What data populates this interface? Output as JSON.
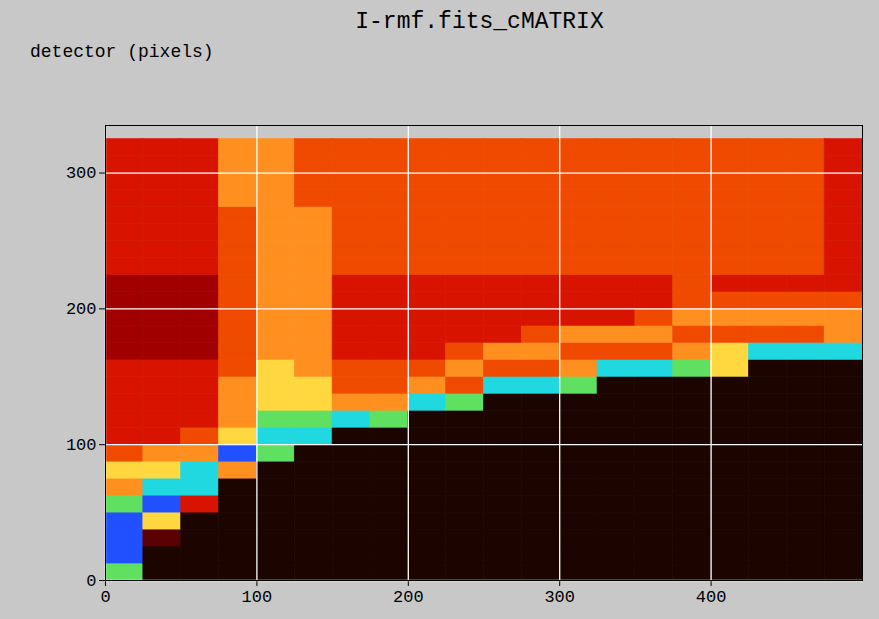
{
  "chart_data": {
    "type": "heatmap",
    "title": "I-rmf.fits_cMATRIX",
    "ylabel": "detector (pixels)",
    "xlim": [
      0,
      500
    ],
    "xticks": [
      0,
      100,
      200,
      300,
      400
    ],
    "ylim": [
      0,
      335
    ],
    "yticks": [
      0,
      100,
      200,
      300
    ],
    "grid": true,
    "x_bins": [
      0,
      25,
      50,
      75,
      100,
      125,
      150,
      175,
      200,
      225,
      250,
      275,
      300,
      325,
      350,
      375,
      400,
      425,
      450,
      475,
      500
    ],
    "y_bins": [
      0,
      12.5,
      25,
      37.5,
      50,
      62.5,
      75,
      87.5,
      100,
      112.5,
      125,
      137.5,
      150,
      162.5,
      175,
      187.5,
      200,
      212.5,
      225,
      237.5,
      250,
      262.5,
      275,
      287.5,
      300,
      312.5,
      325
    ],
    "cells": [
      [
        7,
        0,
        0,
        0,
        0,
        0,
        0,
        0,
        0,
        0,
        0,
        0,
        0,
        0,
        0,
        0,
        0,
        0,
        0,
        0
      ],
      [
        9,
        0,
        0,
        0,
        0,
        0,
        0,
        0,
        0,
        0,
        0,
        0,
        0,
        0,
        0,
        0,
        0,
        0,
        0,
        0
      ],
      [
        9,
        1,
        0,
        0,
        0,
        0,
        0,
        0,
        0,
        0,
        0,
        0,
        0,
        0,
        0,
        0,
        0,
        0,
        0,
        0
      ],
      [
        9,
        6,
        0,
        0,
        0,
        0,
        0,
        0,
        0,
        0,
        0,
        0,
        0,
        0,
        0,
        0,
        0,
        0,
        0,
        0
      ],
      [
        7,
        9,
        3,
        0,
        0,
        0,
        0,
        0,
        0,
        0,
        0,
        0,
        0,
        0,
        0,
        0,
        0,
        0,
        0,
        0
      ],
      [
        5,
        8,
        8,
        0,
        0,
        0,
        0,
        0,
        0,
        0,
        0,
        0,
        0,
        0,
        0,
        0,
        0,
        0,
        0,
        0
      ],
      [
        6,
        6,
        8,
        5,
        0,
        0,
        0,
        0,
        0,
        0,
        0,
        0,
        0,
        0,
        0,
        0,
        0,
        0,
        0,
        0
      ],
      [
        4,
        5,
        5,
        9,
        7,
        0,
        0,
        0,
        0,
        0,
        0,
        0,
        0,
        0,
        0,
        0,
        0,
        0,
        0,
        0
      ],
      [
        3,
        3,
        4,
        6,
        8,
        8,
        0,
        0,
        0,
        0,
        0,
        0,
        0,
        0,
        0,
        0,
        0,
        0,
        0,
        0
      ],
      [
        3,
        3,
        3,
        5,
        7,
        7,
        8,
        7,
        0,
        0,
        0,
        0,
        0,
        0,
        0,
        0,
        0,
        0,
        0,
        0
      ],
      [
        3,
        3,
        3,
        5,
        6,
        6,
        5,
        5,
        8,
        7,
        0,
        0,
        0,
        0,
        0,
        0,
        0,
        0,
        0,
        0
      ],
      [
        3,
        3,
        3,
        5,
        6,
        6,
        4,
        4,
        5,
        4,
        8,
        8,
        7,
        0,
        0,
        0,
        0,
        0,
        0,
        0
      ],
      [
        3,
        3,
        3,
        4,
        6,
        5,
        4,
        4,
        4,
        5,
        4,
        4,
        5,
        8,
        8,
        7,
        6,
        0,
        0,
        0
      ],
      [
        2,
        2,
        2,
        4,
        5,
        5,
        3,
        3,
        3,
        4,
        5,
        5,
        4,
        4,
        4,
        5,
        6,
        8,
        8,
        8
      ],
      [
        2,
        2,
        2,
        4,
        5,
        5,
        3,
        3,
        3,
        3,
        3,
        4,
        5,
        5,
        5,
        4,
        4,
        4,
        4,
        5
      ],
      [
        2,
        2,
        2,
        4,
        5,
        5,
        3,
        3,
        3,
        3,
        3,
        3,
        3,
        3,
        4,
        5,
        5,
        5,
        5,
        5
      ],
      [
        2,
        2,
        2,
        4,
        5,
        5,
        3,
        3,
        3,
        3,
        3,
        3,
        3,
        3,
        3,
        4,
        4,
        4,
        4,
        4
      ],
      [
        2,
        2,
        2,
        4,
        5,
        5,
        3,
        3,
        3,
        3,
        3,
        3,
        3,
        3,
        3,
        4,
        3,
        3,
        3,
        3
      ],
      [
        3,
        3,
        3,
        4,
        5,
        5,
        4,
        4,
        4,
        4,
        4,
        4,
        4,
        4,
        4,
        4,
        4,
        4,
        4,
        3
      ],
      [
        3,
        3,
        3,
        4,
        5,
        5,
        4,
        4,
        4,
        4,
        4,
        4,
        4,
        4,
        4,
        4,
        4,
        4,
        4,
        3
      ],
      [
        3,
        3,
        3,
        4,
        5,
        5,
        4,
        4,
        4,
        4,
        4,
        4,
        4,
        4,
        4,
        4,
        4,
        4,
        4,
        3
      ],
      [
        3,
        3,
        3,
        4,
        5,
        5,
        4,
        4,
        4,
        4,
        4,
        4,
        4,
        4,
        4,
        4,
        4,
        4,
        4,
        3
      ],
      [
        3,
        3,
        3,
        5,
        5,
        4,
        4,
        4,
        4,
        4,
        4,
        4,
        4,
        4,
        4,
        4,
        4,
        4,
        4,
        3
      ],
      [
        3,
        3,
        3,
        5,
        5,
        4,
        4,
        4,
        4,
        4,
        4,
        4,
        4,
        4,
        4,
        4,
        4,
        4,
        4,
        3
      ],
      [
        3,
        3,
        3,
        5,
        5,
        4,
        4,
        4,
        4,
        4,
        4,
        4,
        4,
        4,
        4,
        4,
        4,
        4,
        4,
        3
      ],
      [
        3,
        3,
        3,
        5,
        5,
        4,
        4,
        4,
        4,
        4,
        4,
        4,
        4,
        4,
        4,
        4,
        4,
        4,
        4,
        3
      ]
    ],
    "color_range": [
      0,
      9
    ],
    "colors": [
      "#1c0400",
      "#5a0000",
      "#a00000",
      "#d81400",
      "#f04a00",
      "#ff9020",
      "#ffd840",
      "#60e060",
      "#20d8e0",
      "#2050ff"
    ]
  }
}
